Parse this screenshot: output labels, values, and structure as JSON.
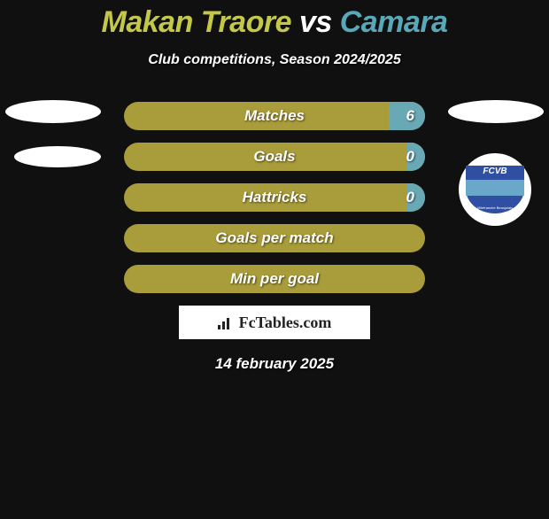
{
  "header": {
    "player1": "Makan Traore",
    "vs": "vs",
    "player2": "Camara",
    "player1_color": "#c4c849",
    "player2_color": "#59a8ba",
    "subtitle": "Club competitions, Season 2024/2025"
  },
  "stats": {
    "left_color": "#a99c3a",
    "right_color": "#69a9b5",
    "rows": [
      {
        "label": "Matches",
        "left": "",
        "right": "6",
        "right_pct": 12
      },
      {
        "label": "Goals",
        "left": "",
        "right": "0",
        "right_pct": 6
      },
      {
        "label": "Hattricks",
        "left": "",
        "right": "0",
        "right_pct": 6
      },
      {
        "label": "Goals per match",
        "left": "",
        "right": "",
        "right_pct": 0
      },
      {
        "label": "Min per goal",
        "left": "",
        "right": "",
        "right_pct": 0
      }
    ]
  },
  "club": {
    "badge_text": "FCVB",
    "badge_sub": "Villefranche Beaujolais",
    "bg": "#2f4fa3",
    "stripe": "#6aa8c9"
  },
  "brand": {
    "text": "FcTables.com"
  },
  "date": "14 february 2025"
}
